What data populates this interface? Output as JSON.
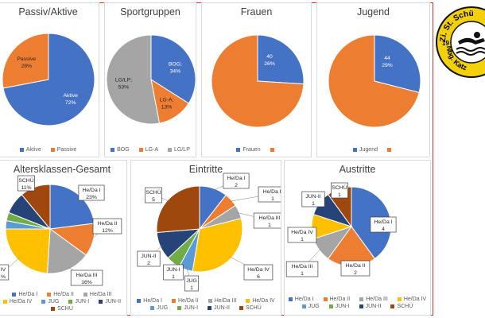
{
  "chart_data": [
    {
      "id": "passiv-aktive",
      "type": "pie",
      "title": "Passiv/Aktive",
      "categories": [
        "Aktive",
        "Passive"
      ],
      "values": [
        72,
        28
      ],
      "data_labels": [
        [
          "Aktive",
          "72%"
        ],
        [
          "Passive",
          "28%"
        ]
      ],
      "colors": [
        "#4472C4",
        "#ED7D31"
      ],
      "legend": [
        "Aktive",
        "Passive"
      ],
      "legend_position": "bottom"
    },
    {
      "id": "sportgruppen",
      "type": "pie",
      "title": "Sportgruppen",
      "categories": [
        "BOG",
        "LG-A",
        "LG/LP"
      ],
      "values": [
        34,
        13,
        53
      ],
      "data_labels": [
        [
          "BOG;",
          "34%"
        ],
        [
          "LG-A;",
          "13%"
        ],
        [
          "LG/LP;",
          "53%"
        ]
      ],
      "colors": [
        "#4472C4",
        "#ED7D31",
        "#A5A5A5"
      ],
      "legend": [
        "BOG",
        "LG-A",
        "LG/LP"
      ],
      "legend_position": "bottom"
    },
    {
      "id": "frauen",
      "type": "pie",
      "title": "Frauen",
      "categories": [
        "Frauen",
        ""
      ],
      "values": [
        26,
        74
      ],
      "data_labels": [
        [
          "40",
          "26%"
        ],
        null
      ],
      "colors": [
        "#4472C4",
        "#ED7D31"
      ],
      "legend": [
        "Frauen",
        ""
      ],
      "legend_position": "bottom"
    },
    {
      "id": "jugend",
      "type": "pie",
      "title": "Jugend",
      "categories": [
        "Jugend",
        ""
      ],
      "values": [
        29,
        71
      ],
      "data_labels": [
        [
          "44",
          "29%"
        ],
        null
      ],
      "colors": [
        "#4472C4",
        "#ED7D31"
      ],
      "legend": [
        "Jugend",
        ""
      ],
      "legend_position": "bottom"
    },
    {
      "id": "altersklassen",
      "type": "pie",
      "title": "Altersklassen-Gesamt",
      "categories": [
        "He/Da I",
        "He/Da II",
        "He/Da III",
        "He/Da IV",
        "JUG",
        "JUN-I",
        "JUN-II",
        "SCHÜ"
      ],
      "values": [
        23,
        12,
        16,
        24,
        3,
        3,
        8,
        11
      ],
      "data_labels": [
        [
          "He/Da I",
          "23%"
        ],
        [
          "He/Da II",
          "12%"
        ],
        [
          "He/Da III",
          "16%"
        ],
        [
          "IV",
          "%"
        ],
        null,
        null,
        null,
        [
          "SCHÜ",
          "11%"
        ]
      ],
      "colors": [
        "#4472C4",
        "#ED7D31",
        "#A5A5A5",
        "#FFC000",
        "#5B9BD5",
        "#70AD47",
        "#264478",
        "#9E480E"
      ],
      "legend": [
        "He/Da I",
        "He/Da II",
        "He/Da III",
        "He/Da IV",
        "JUG",
        "JUN-I",
        "JUN-II",
        "SCHÜ"
      ],
      "legend_position": "bottom"
    },
    {
      "id": "eintritte",
      "type": "pie",
      "title": "Eintritte",
      "categories": [
        "He/Da I",
        "He/Da II",
        "He/Da III",
        "He/Da IV",
        "JUG",
        "JUN-I",
        "JUN-II",
        "SCHÜ"
      ],
      "values": [
        2,
        1,
        1,
        6,
        1,
        1,
        2,
        5
      ],
      "data_labels": [
        [
          "He/Da I",
          "2"
        ],
        [
          "He/Da II",
          "1"
        ],
        [
          "He/Da III",
          "1"
        ],
        [
          "He/Da IV",
          "6"
        ],
        [
          "JUG",
          "1"
        ],
        [
          "JUN-I",
          "1"
        ],
        [
          "JUN-II",
          "2"
        ],
        [
          "SCHÜ",
          "5"
        ]
      ],
      "colors": [
        "#4472C4",
        "#ED7D31",
        "#A5A5A5",
        "#FFC000",
        "#5B9BD5",
        "#70AD47",
        "#264478",
        "#9E480E"
      ],
      "legend": [
        "He/Da I",
        "He/Da II",
        "He/Da III",
        "He/Da IV",
        "JUG",
        "JUN-I",
        "JUN-II",
        "SCHÜ"
      ],
      "legend_position": "bottom"
    },
    {
      "id": "austritte",
      "type": "pie",
      "title": "Austritte",
      "categories": [
        "He/Da I",
        "He/Da II",
        "He/Da III",
        "He/Da IV",
        "JUG",
        "JUN-I",
        "JUN-II",
        "SCHÜ"
      ],
      "values": [
        4,
        2,
        1,
        1,
        0,
        0,
        1,
        1
      ],
      "data_labels": [
        [
          "He/Da I",
          "4"
        ],
        [
          "He/Da II",
          "2"
        ],
        [
          "He/Da III",
          "1"
        ],
        [
          "He/Da IV",
          "1"
        ],
        null,
        null,
        [
          "JUN-II",
          "1"
        ],
        [
          "SCHÜ",
          "1"
        ]
      ],
      "colors": [
        "#4472C4",
        "#ED7D31",
        "#A5A5A5",
        "#FFC000",
        "#5B9BD5",
        "#70AD47",
        "#264478",
        "#9E480E"
      ],
      "legend": [
        "He/Da I",
        "He/Da II",
        "He/Da III",
        "He/Da IV",
        "JUG",
        "JUN-I",
        "JUN-II",
        "SCHÜ"
      ],
      "legend_position": "bottom"
    }
  ],
  "logo": {
    "text_top": "Zi. St. Schü",
    "text_bottom": "Nbg. Katz",
    "year_left": "19",
    "year_right": "8",
    "ring_color": "#F2D00A",
    "ink_color": "#111111"
  }
}
